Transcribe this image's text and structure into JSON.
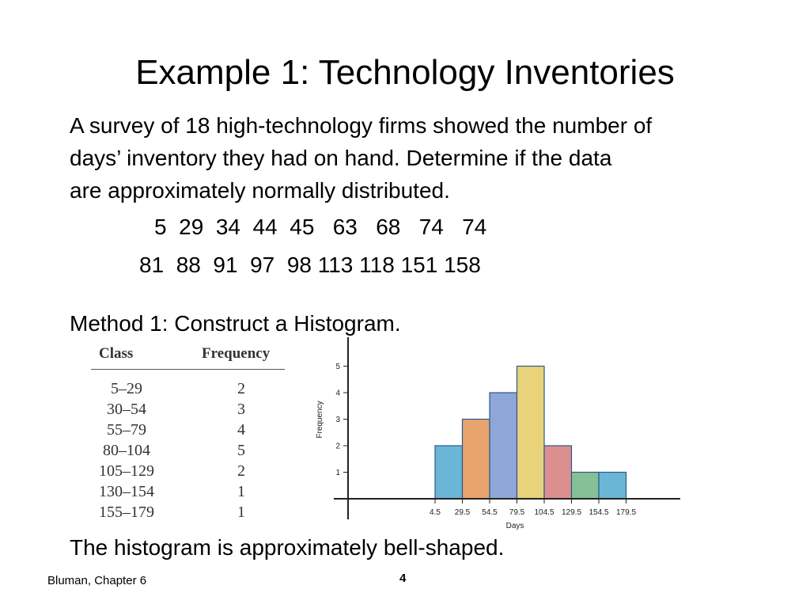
{
  "slide": {
    "title": "Example 1: Technology Inventories",
    "paragraph_lines": [
      "A survey of 18 high-technology firms showed the number of",
      "days’ inventory they had on hand. Determine if the data",
      "are approximately normally distributed."
    ],
    "data_row_1": "5  29  34  44  45   63   68   74   74",
    "data_row_2": "81  88  91  97  98 113 118 151 158",
    "method": "Method 1: Construct a Histogram.",
    "conclusion": "The histogram is approximately bell-shaped.",
    "footer_left": "Bluman, Chapter 6",
    "page_number": "4"
  },
  "table": {
    "headers": [
      "Class",
      "Frequency"
    ],
    "rows": [
      {
        "class": "5–29",
        "frequency": "2"
      },
      {
        "class": "30–54",
        "frequency": "3"
      },
      {
        "class": "55–79",
        "frequency": "4"
      },
      {
        "class": "80–104",
        "frequency": "5"
      },
      {
        "class": "105–129",
        "frequency": "2"
      },
      {
        "class": "130–154",
        "frequency": "1"
      },
      {
        "class": "155–179",
        "frequency": "1"
      }
    ]
  },
  "chart_data": {
    "type": "bar",
    "title": "",
    "xlabel": "Days",
    "ylabel": "Frequency",
    "boundaries": [
      "4.5",
      "29.5",
      "54.5",
      "79.5",
      "104.5",
      "129.5",
      "154.5",
      "179.5"
    ],
    "values": [
      2,
      3,
      4,
      5,
      2,
      1,
      1
    ],
    "colors": [
      "#6bb6d6",
      "#e8a46c",
      "#8fa6d8",
      "#e8d27a",
      "#dc8f8f",
      "#86c096",
      "#6bb6d6"
    ],
    "yticks": [
      "1",
      "2",
      "3",
      "4",
      "5"
    ],
    "ylim": [
      0,
      5.5
    ],
    "grid": false,
    "legend": "none"
  }
}
